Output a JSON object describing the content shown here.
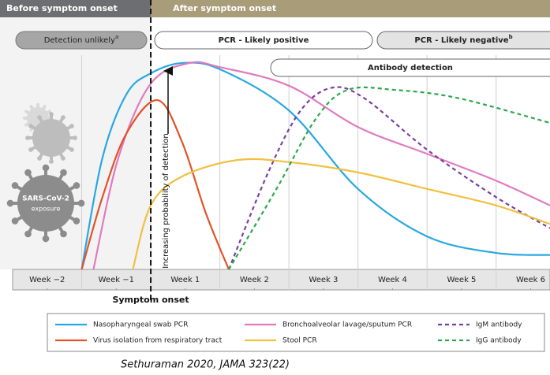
{
  "chart_data": {
    "type": "line",
    "header_before": "Before symptom onset",
    "header_after": "After symptom onset",
    "phases": [
      {
        "label": "Detection unlikely",
        "note": "a"
      },
      {
        "label": "PCR - Likely positive"
      },
      {
        "label": "PCR - Likely negative",
        "note": "b"
      },
      {
        "label": "Antibody detection"
      }
    ],
    "y_label": "Increasing probability of detection",
    "onset_label": "Symptom onset",
    "virus_label": [
      "SARS-CoV-2",
      "exposure"
    ],
    "caption": "Sethuraman 2020, JAMA 323(22)",
    "xlim": [
      -2,
      5.78
    ],
    "ylim": [
      0,
      100
    ],
    "xticks": [
      {
        "value": -1.5,
        "label": "Week −2"
      },
      {
        "value": -0.5,
        "label": "Week −1"
      },
      {
        "value": 0.5,
        "label": "Week 1"
      },
      {
        "value": 1.5,
        "label": "Week 2"
      },
      {
        "value": 2.5,
        "label": "Week 3"
      },
      {
        "value": 3.5,
        "label": "Week 4"
      },
      {
        "value": 4.5,
        "label": "Week 5"
      },
      {
        "value": 5.5,
        "label": "Week 6"
      }
    ],
    "series": [
      {
        "name": "Nasopharyngeal swab PCR",
        "color": "#29a8e0",
        "dashed": false,
        "x": [
          -1,
          -0.7,
          -0.35,
          0,
          0.45,
          1,
          2,
          3,
          4,
          5,
          5.78
        ],
        "values": [
          0,
          54,
          85,
          95,
          100,
          97,
          77,
          39,
          16,
          8,
          7
        ]
      },
      {
        "name": "Bronchoalveolar lavage/sputum PCR",
        "color": "#e07bbf",
        "dashed": false,
        "x": [
          -0.83,
          -0.47,
          0,
          0.56,
          1,
          2,
          3,
          4,
          5,
          5.78
        ],
        "values": [
          0,
          54,
          90,
          100,
          98,
          89,
          69,
          56,
          43,
          31
        ]
      },
      {
        "name": "IgM antibody",
        "color": "#7b3fa0",
        "dashed": true,
        "x": [
          1.13,
          1.7,
          2.17,
          2.62,
          3.09,
          4,
          5,
          5.78
        ],
        "values": [
          0,
          47,
          77,
          88,
          83,
          58,
          35,
          20
        ]
      },
      {
        "name": "Virus isolation from respiratory tract",
        "color": "#e0542a",
        "dashed": false,
        "x": [
          -1,
          -0.7,
          -0.35,
          0.1,
          0.45,
          0.8,
          1.13
        ],
        "values": [
          0,
          35,
          66,
          82,
          62,
          27,
          0
        ]
      },
      {
        "name": "Stool PCR",
        "color": "#f0c040",
        "dashed": false,
        "x": [
          -0.26,
          0,
          0.45,
          1.25,
          2,
          3,
          4,
          5,
          5.78
        ],
        "values": [
          0,
          31,
          45,
          53,
          52,
          47,
          39,
          31,
          22
        ]
      },
      {
        "name": "IgG antibody",
        "color": "#2ca84a",
        "dashed": true,
        "x": [
          1.13,
          1.82,
          2.39,
          2.85,
          3.53,
          4.45,
          5.78
        ],
        "values": [
          0,
          39,
          73,
          87,
          87,
          83,
          71
        ]
      }
    ]
  }
}
